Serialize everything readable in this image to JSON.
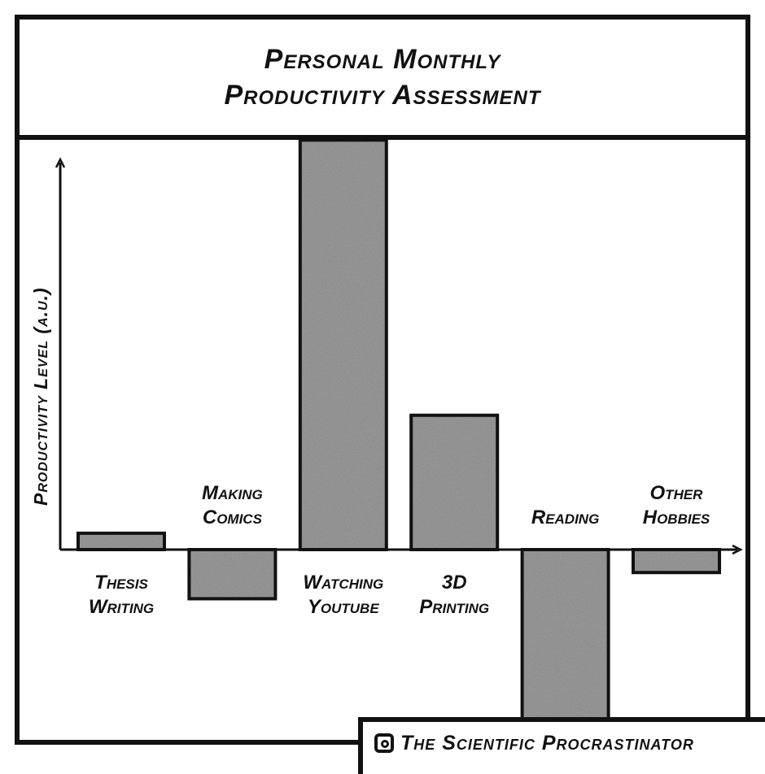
{
  "title": {
    "line1": "Personal Monthly",
    "line2": "Productivity Assessment"
  },
  "credit": {
    "icon": "instagram-icon",
    "text": "The Scientific Procrastinator"
  },
  "chart_data": {
    "type": "bar",
    "ylabel": "Productivity Level (a.u.)",
    "xlabel": "",
    "categories": [
      [
        "Thesis",
        "Writing"
      ],
      [
        "Making",
        "Comics"
      ],
      [
        "Watching",
        "Youtube"
      ],
      [
        "3D",
        "Printing"
      ],
      [
        "Reading"
      ],
      [
        "Other",
        "Hobbies"
      ]
    ],
    "values": [
      0.5,
      -1.5,
      12.5,
      4.1,
      -5.3,
      -0.7
    ],
    "ylim": [
      -5.3,
      12.5
    ],
    "grid": false,
    "legend": "none",
    "colors": {
      "bar": "#6e6e6e",
      "outline": "#111111"
    }
  }
}
